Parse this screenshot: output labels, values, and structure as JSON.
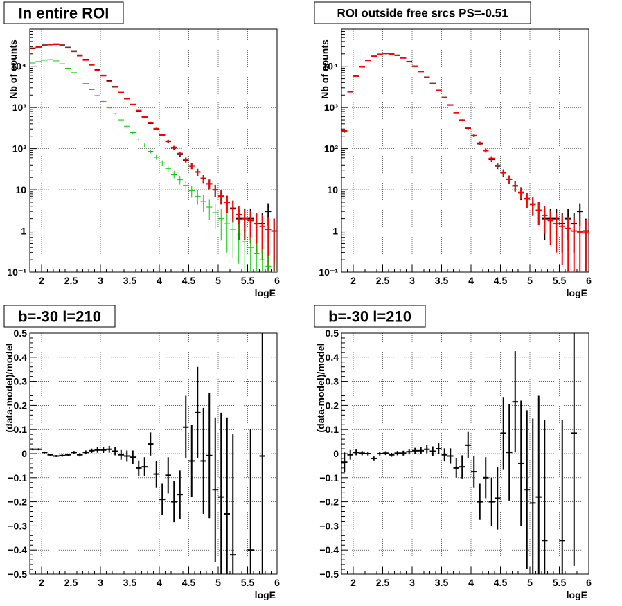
{
  "chart_data": [
    {
      "type": "scatter",
      "title": "In entire ROI",
      "xlabel": "logE",
      "ylabel": "Nb of counts",
      "xlim": [
        1.8,
        6.0
      ],
      "ylim": [
        0.1,
        80000
      ],
      "yscale": "log",
      "grid": true,
      "x_ticks": [
        "2",
        "2.5",
        "3",
        "3.5",
        "4",
        "4.5",
        "5",
        "5.5",
        "6"
      ],
      "y_ticks": [
        "10⁻¹",
        "1",
        "10",
        "10²",
        "10³",
        "10⁴"
      ],
      "series": [
        {
          "color": "#000000",
          "x": [
            1.85,
            1.95,
            2.05,
            2.15,
            2.25,
            2.35,
            2.45,
            2.55,
            2.65,
            2.75,
            2.85,
            2.95,
            3.05,
            3.15,
            3.25,
            3.35,
            3.45,
            3.55,
            3.65,
            3.75,
            3.85,
            3.95,
            4.05,
            4.15,
            4.25,
            4.35,
            4.45,
            4.55,
            4.65,
            4.75,
            4.85,
            4.95,
            5.05,
            5.15,
            5.25,
            5.35,
            5.45,
            5.55,
            5.65,
            5.75,
            5.85,
            5.95
          ],
          "y": [
            27000,
            29500,
            32500,
            34000,
            34500,
            32500,
            28500,
            23500,
            18500,
            14500,
            11000,
            8200,
            6000,
            4400,
            3200,
            2300,
            1650,
            1180,
            830,
            590,
            415,
            300,
            215,
            150,
            105,
            73,
            53,
            38,
            27,
            19,
            14,
            10,
            7,
            5,
            3.5,
            2,
            2,
            2,
            1.5,
            1.5,
            3,
            1
          ],
          "yerr": [
            165,
            172,
            180,
            184,
            186,
            180,
            169,
            153,
            136,
            120,
            105,
            91,
            77,
            66,
            57,
            48,
            41,
            34,
            29,
            24,
            20,
            17,
            15,
            12,
            10,
            8.5,
            7.3,
            6.2,
            5.2,
            4.4,
            3.7,
            3.2,
            2.6,
            2.2,
            1.9,
            1.4,
            1.4,
            1.4,
            1.2,
            1.2,
            1.7,
            1
          ]
        },
        {
          "color": "#ff0000",
          "x": [
            1.85,
            1.95,
            2.05,
            2.15,
            2.25,
            2.35,
            2.45,
            2.55,
            2.65,
            2.75,
            2.85,
            2.95,
            3.05,
            3.15,
            3.25,
            3.35,
            3.45,
            3.55,
            3.65,
            3.75,
            3.85,
            3.95,
            4.05,
            4.15,
            4.25,
            4.35,
            4.45,
            4.55,
            4.65,
            4.75,
            4.85,
            4.95,
            5.05,
            5.15,
            5.25,
            5.35,
            5.45,
            5.55,
            5.65,
            5.75,
            5.85,
            5.95
          ],
          "y": [
            27500,
            30000,
            32000,
            33500,
            34000,
            32000,
            28000,
            23000,
            18000,
            14200,
            10800,
            8050,
            5900,
            4300,
            3150,
            2270,
            1640,
            1180,
            840,
            600,
            430,
            305,
            215,
            152,
            107,
            76,
            54,
            38,
            27,
            19,
            14,
            10,
            7,
            5,
            3.6,
            2.5,
            2,
            1.8,
            1.5,
            1.3,
            1.1,
            1.0
          ],
          "yerr": [
            166,
            173,
            179,
            183,
            184,
            179,
            167,
            152,
            134,
            119,
            104,
            90,
            77,
            66,
            56,
            48,
            40,
            34,
            29,
            24,
            21,
            17,
            15,
            12,
            10,
            8.7,
            7.3,
            6.2,
            5.2,
            4.4,
            3.7,
            3.2,
            2.6,
            2.2,
            1.9,
            1.6,
            1.4,
            1.3,
            1.2,
            1.1,
            1.0,
            1.0
          ]
        },
        {
          "color": "#00cc00",
          "x": [
            1.85,
            1.95,
            2.05,
            2.15,
            2.25,
            2.35,
            2.45,
            2.55,
            2.65,
            2.75,
            2.85,
            2.95,
            3.05,
            3.15,
            3.25,
            3.35,
            3.45,
            3.55,
            3.65,
            3.75,
            3.85,
            3.95,
            4.05,
            4.15,
            4.25,
            4.35,
            4.45,
            4.55,
            4.65,
            4.75,
            4.85,
            4.95,
            5.05,
            5.15,
            5.25,
            5.35,
            5.45,
            5.55,
            5.65,
            5.75,
            5.85,
            5.95
          ],
          "y": [
            12000,
            13000,
            14000,
            14500,
            13500,
            11500,
            9000,
            7000,
            5200,
            3800,
            2700,
            1950,
            1400,
            980,
            700,
            500,
            350,
            245,
            172,
            122,
            86,
            62,
            45,
            33,
            24,
            17.5,
            12.8,
            9.5,
            7,
            5.2,
            3.8,
            2.8,
            2,
            1.5,
            1.1,
            0.8,
            0.55,
            0.4,
            0.28,
            0.2,
            0.14,
            0.1
          ]
        }
      ]
    },
    {
      "type": "scatter",
      "title": "ROI outside free srcs PS=-0.51",
      "xlabel": "logE",
      "ylabel": "Nb of counts",
      "xlim": [
        1.8,
        6.0
      ],
      "ylim": [
        0.1,
        80000
      ],
      "yscale": "log",
      "grid": true,
      "x_ticks": [
        "2",
        "2.5",
        "3",
        "3.5",
        "4",
        "4.5",
        "5",
        "5.5",
        "6"
      ],
      "y_ticks": [
        "10⁻¹",
        "1",
        "10",
        "10²",
        "10³",
        "10⁴"
      ],
      "series": [
        {
          "color": "#000000",
          "x": [
            1.85,
            1.95,
            2.05,
            2.15,
            2.25,
            2.35,
            2.45,
            2.55,
            2.65,
            2.75,
            2.85,
            2.95,
            3.05,
            3.15,
            3.25,
            3.35,
            3.45,
            3.55,
            3.65,
            3.75,
            3.85,
            3.95,
            4.05,
            4.15,
            4.25,
            4.35,
            4.45,
            4.55,
            4.65,
            4.75,
            4.85,
            4.95,
            5.05,
            5.15,
            5.25,
            5.35,
            5.45,
            5.55,
            5.65,
            5.75,
            5.85,
            5.95
          ],
          "y": [
            260,
            2400,
            5800,
            9800,
            14000,
            17500,
            19500,
            20500,
            20000,
            18500,
            16000,
            13000,
            10000,
            7500,
            5400,
            3800,
            2600,
            1750,
            1150,
            750,
            490,
            315,
            205,
            132,
            90,
            55,
            38,
            26,
            18,
            12.5,
            8.5,
            6,
            4.5,
            3.2,
            2,
            2,
            2,
            1.5,
            2,
            1.5,
            3,
            1
          ],
          "yerr": [
            16,
            49,
            76,
            99,
            118,
            132,
            140,
            143,
            141,
            136,
            126,
            114,
            100,
            87,
            73,
            62,
            51,
            42,
            34,
            27,
            22,
            18,
            14,
            11,
            9.5,
            7.4,
            6.2,
            5.1,
            4.2,
            3.5,
            2.9,
            2.4,
            2.1,
            1.8,
            1.4,
            1.4,
            1.4,
            1.2,
            1.4,
            1.2,
            1.7,
            1
          ]
        },
        {
          "color": "#ff0000",
          "x": [
            1.85,
            1.95,
            2.05,
            2.15,
            2.25,
            2.35,
            2.45,
            2.55,
            2.65,
            2.75,
            2.85,
            2.95,
            3.05,
            3.15,
            3.25,
            3.35,
            3.45,
            3.55,
            3.65,
            3.75,
            3.85,
            3.95,
            4.05,
            4.15,
            4.25,
            4.35,
            4.45,
            4.55,
            4.65,
            4.75,
            4.85,
            4.95,
            5.05,
            5.15,
            5.25,
            5.35,
            5.45,
            5.55,
            5.65,
            5.75,
            5.85,
            5.95
          ],
          "y": [
            270,
            2400,
            5800,
            9700,
            13900,
            17400,
            19400,
            20400,
            19900,
            18400,
            15900,
            12900,
            9950,
            7450,
            5380,
            3780,
            2590,
            1745,
            1148,
            755,
            494,
            318,
            208,
            136,
            90,
            58,
            39,
            26.5,
            18,
            12.6,
            8.7,
            6.1,
            4.4,
            3.2,
            2.4,
            1.8,
            1.5,
            1.3,
            1.15,
            1.0,
            0.95,
            0.9
          ],
          "yerr": [
            16,
            49,
            76,
            98,
            118,
            132,
            139,
            143,
            141,
            136,
            126,
            114,
            100,
            86,
            73,
            61,
            51,
            42,
            34,
            27,
            22,
            18,
            14,
            12,
            9.5,
            7.6,
            6.2,
            5.1,
            4.2,
            3.5,
            2.9,
            2.5,
            2.1,
            1.8,
            1.55,
            1.35,
            1.2,
            1.15,
            1.05,
            1.0,
            0.97,
            0.95
          ]
        }
      ]
    },
    {
      "type": "scatter",
      "title": "b=-30 l=210",
      "xlabel": "logE",
      "ylabel": "(data-model)/model",
      "xlim": [
        1.8,
        6.0
      ],
      "ylim": [
        -0.5,
        0.5
      ],
      "grid": true,
      "x_ticks": [
        "2",
        "2.5",
        "3",
        "3.5",
        "4",
        "4.5",
        "5",
        "5.5",
        "6"
      ],
      "y_ticks": [
        "−0.5",
        "−0.4",
        "−0.3",
        "−0.2",
        "−0.1",
        "0",
        "0.1",
        "0.2",
        "0.3",
        "0.4",
        "0.5"
      ],
      "series": [
        {
          "color": "#000000",
          "x": [
            1.85,
            1.95,
            2.05,
            2.15,
            2.25,
            2.35,
            2.45,
            2.55,
            2.65,
            2.75,
            2.85,
            2.95,
            3.05,
            3.15,
            3.25,
            3.35,
            3.45,
            3.55,
            3.65,
            3.75,
            3.85,
            3.95,
            4.05,
            4.15,
            4.25,
            4.35,
            4.45,
            4.55,
            4.65,
            4.75,
            4.85,
            4.95,
            5.05,
            5.15,
            5.25,
            5.55,
            5.75
          ],
          "y": [
            0.018,
            0.018,
            0.005,
            -0.005,
            -0.01,
            -0.008,
            -0.005,
            0.005,
            -0.005,
            0.005,
            0.012,
            0.015,
            0.015,
            0.018,
            0.01,
            -0.005,
            -0.01,
            -0.015,
            -0.06,
            -0.055,
            0.04,
            -0.085,
            -0.19,
            -0.09,
            -0.2,
            -0.17,
            0.11,
            -0.03,
            0.17,
            -0.03,
            -0.008,
            -0.15,
            -0.18,
            -0.25,
            -0.42,
            -0.4,
            -0.01
          ],
          "yerr": [
            0.004,
            0.004,
            0.004,
            0.004,
            0.004,
            0.005,
            0.005,
            0.006,
            0.007,
            0.008,
            0.009,
            0.011,
            0.012,
            0.014,
            0.017,
            0.02,
            0.023,
            0.028,
            0.032,
            0.04,
            0.048,
            0.055,
            0.065,
            0.075,
            0.085,
            0.1,
            0.13,
            0.15,
            0.19,
            0.22,
            0.26,
            0.3,
            0.35,
            0.4,
            0.5,
            0.5,
            0.55
          ]
        }
      ]
    },
    {
      "type": "scatter",
      "title": "b=-30 l=210",
      "xlabel": "logE",
      "ylabel": "(data-model)/model",
      "xlim": [
        1.8,
        6.0
      ],
      "ylim": [
        -0.5,
        0.5
      ],
      "grid": true,
      "x_ticks": [
        "2",
        "2.5",
        "3",
        "3.5",
        "4",
        "4.5",
        "5",
        "5.5",
        "6"
      ],
      "y_ticks": [
        "−0.5",
        "−0.4",
        "−0.3",
        "−0.2",
        "−0.1",
        "0",
        "0.1",
        "0.2",
        "0.3",
        "0.4",
        "0.5"
      ],
      "series": [
        {
          "color": "#000000",
          "x": [
            1.85,
            1.95,
            2.05,
            2.15,
            2.25,
            2.35,
            2.45,
            2.55,
            2.65,
            2.75,
            2.85,
            2.95,
            3.05,
            3.15,
            3.25,
            3.35,
            3.45,
            3.55,
            3.65,
            3.75,
            3.85,
            3.95,
            4.05,
            4.15,
            4.25,
            4.35,
            4.45,
            4.55,
            4.65,
            4.75,
            4.85,
            4.95,
            5.05,
            5.15,
            5.25,
            5.55,
            5.75
          ],
          "y": [
            -0.035,
            -0.005,
            0.005,
            0.002,
            0.0,
            -0.02,
            0.0,
            0.002,
            -0.005,
            0.002,
            0.002,
            0.008,
            0.012,
            0.012,
            0.018,
            0.01,
            0.02,
            -0.005,
            -0.01,
            -0.06,
            -0.055,
            0.035,
            -0.075,
            -0.2,
            -0.1,
            -0.2,
            -0.185,
            0.085,
            0.005,
            0.215,
            -0.04,
            -0.15,
            -0.205,
            -0.18,
            -0.36,
            -0.36,
            0.085
          ],
          "yerr": [
            0.04,
            0.02,
            0.012,
            0.009,
            0.008,
            0.008,
            0.008,
            0.008,
            0.008,
            0.009,
            0.01,
            0.011,
            0.012,
            0.014,
            0.017,
            0.02,
            0.023,
            0.027,
            0.032,
            0.04,
            0.048,
            0.055,
            0.065,
            0.075,
            0.085,
            0.1,
            0.13,
            0.15,
            0.2,
            0.21,
            0.26,
            0.33,
            0.35,
            0.42,
            0.5,
            0.5,
            0.55
          ]
        }
      ]
    }
  ]
}
